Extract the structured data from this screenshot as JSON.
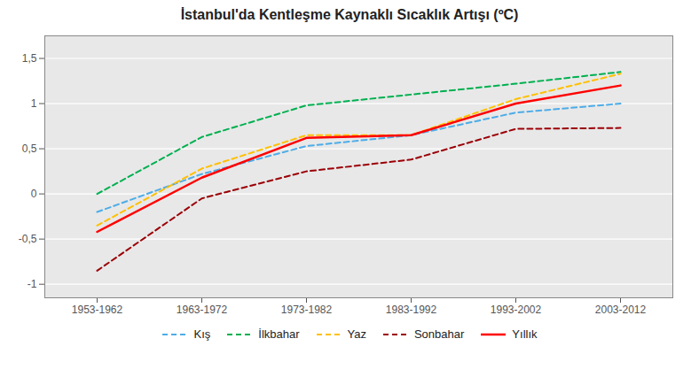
{
  "chart_data": {
    "type": "line",
    "title": "İstanbul'da Kentleşme Kaynaklı Sıcaklık Artışı (ºC)",
    "categories": [
      "1953-1962",
      "1963-1972",
      "1973-1982",
      "1983-1992",
      "1993-2002",
      "2003-2012"
    ],
    "series": [
      {
        "name": "Kış",
        "color": "#4DACE8",
        "line_style": "dashed",
        "values": [
          -0.2,
          0.22,
          0.53,
          0.65,
          0.9,
          1.0
        ]
      },
      {
        "name": "İlkbahar",
        "color": "#00B050",
        "line_style": "dashed",
        "values": [
          0.0,
          0.63,
          0.98,
          1.1,
          1.22,
          1.35
        ]
      },
      {
        "name": "Yaz",
        "color": "#FFC000",
        "line_style": "dashed",
        "values": [
          -0.35,
          0.28,
          0.65,
          0.65,
          1.05,
          1.33
        ]
      },
      {
        "name": "Sonbahar",
        "color": "#9B0006",
        "line_style": "dashed",
        "values": [
          -0.85,
          -0.05,
          0.25,
          0.38,
          0.72,
          0.73
        ]
      },
      {
        "name": "Yıllık",
        "color": "#FF0000",
        "line_style": "solid",
        "values": [
          -0.42,
          0.18,
          0.62,
          0.65,
          1.0,
          1.2
        ]
      }
    ],
    "ylim": [
      -1.15,
      1.75
    ],
    "yticks": [
      -1,
      {
        "value": -0.5,
        "label": "-0,5"
      },
      0,
      {
        "value": 0.5,
        "label": "0,5"
      },
      1,
      {
        "value": 1.5,
        "label": "1,5"
      }
    ],
    "grid": true,
    "legend": "bottom"
  }
}
